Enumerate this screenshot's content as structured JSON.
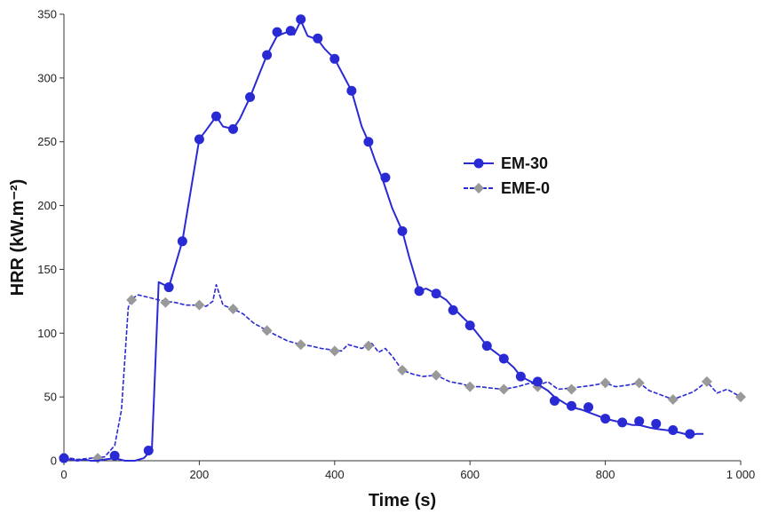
{
  "chart_data": {
    "type": "line",
    "title": "",
    "xlabel": "Time (s)",
    "ylabel": "HRR (kW.m⁻²)",
    "xlim": [
      0,
      1000
    ],
    "ylim": [
      0,
      350
    ],
    "xticks": [
      0,
      200,
      400,
      600,
      800,
      1000
    ],
    "xtick_labels": [
      "0",
      "200",
      "400",
      "600",
      "800",
      "1 000"
    ],
    "yticks": [
      0,
      50,
      100,
      150,
      200,
      250,
      300,
      350
    ],
    "ytick_labels": [
      "0",
      "50",
      "100",
      "150",
      "200",
      "250",
      "300",
      "350"
    ],
    "grid": false,
    "legend_position": "right-middle",
    "series": [
      {
        "name": "EM-30",
        "color": "#2a2ad4",
        "line_style": "solid",
        "marker": "circle",
        "x": [
          0,
          10,
          20,
          30,
          40,
          50,
          60,
          75,
          90,
          105,
          118,
          125,
          130,
          140,
          155,
          175,
          200,
          210,
          225,
          235,
          250,
          260,
          275,
          290,
          300,
          315,
          330,
          340,
          350,
          360,
          375,
          385,
          400,
          415,
          425,
          440,
          450,
          460,
          470,
          485,
          500,
          510,
          525,
          535,
          550,
          565,
          575,
          590,
          600,
          615,
          625,
          640,
          650,
          665,
          675,
          690,
          700,
          715,
          725,
          740,
          750,
          765,
          775,
          790,
          800,
          815,
          825,
          840,
          850,
          865,
          875,
          890,
          900,
          910,
          925,
          935,
          945
        ],
        "y": [
          2,
          1,
          0,
          1,
          0,
          0,
          1,
          2,
          0,
          0,
          2,
          6,
          10,
          140,
          136,
          172,
          252,
          259,
          270,
          262,
          260,
          268,
          285,
          305,
          318,
          333,
          336,
          334,
          345,
          333,
          330,
          323,
          315,
          300,
          290,
          262,
          250,
          235,
          222,
          198,
          180,
          160,
          133,
          135,
          131,
          126,
          120,
          112,
          107,
          97,
          90,
          84,
          80,
          73,
          66,
          62,
          60,
          55,
          50,
          45,
          42,
          40,
          38,
          35,
          33,
          31,
          30,
          28,
          28,
          26,
          25,
          24,
          23,
          22,
          20,
          21,
          21
        ],
        "marker_x": [
          0,
          75,
          125,
          155,
          175,
          200,
          225,
          250,
          275,
          300,
          315,
          335,
          350,
          375,
          400,
          425,
          450,
          475,
          500,
          525,
          550,
          575,
          600,
          625,
          650,
          675,
          700,
          725,
          750,
          775,
          800,
          825,
          850,
          875,
          900,
          925
        ],
        "marker_y": [
          2,
          4,
          8,
          136,
          172,
          252,
          270,
          260,
          285,
          318,
          336,
          337,
          346,
          331,
          315,
          290,
          250,
          222,
          180,
          133,
          131,
          118,
          106,
          90,
          80,
          66,
          62,
          47,
          43,
          42,
          33,
          30,
          31,
          29,
          24,
          21
        ]
      },
      {
        "name": "EME-0",
        "color": "#2a2ad4",
        "marker_color": "#999999",
        "line_style": "dashed",
        "marker": "diamond",
        "x": [
          0,
          20,
          40,
          60,
          75,
          85,
          95,
          100,
          110,
          125,
          140,
          150,
          165,
          180,
          200,
          210,
          220,
          225,
          235,
          250,
          265,
          280,
          300,
          315,
          330,
          350,
          365,
          380,
          395,
          410,
          420,
          440,
          455,
          465,
          475,
          485,
          500,
          515,
          530,
          550,
          570,
          590,
          600,
          615,
          630,
          650,
          670,
          690,
          700,
          715,
          730,
          750,
          765,
          780,
          800,
          815,
          830,
          850,
          865,
          880,
          900,
          915,
          930,
          950,
          965,
          980,
          1000
        ],
        "y": [
          3,
          1,
          2,
          3,
          12,
          40,
          120,
          127,
          130,
          128,
          126,
          125,
          124,
          122,
          122,
          121,
          125,
          138,
          122,
          119,
          115,
          108,
          102,
          98,
          94,
          91,
          90,
          88,
          87,
          86,
          91,
          88,
          92,
          85,
          88,
          82,
          71,
          68,
          66,
          67,
          62,
          60,
          58,
          58,
          57,
          56,
          58,
          61,
          59,
          62,
          56,
          57,
          58,
          59,
          61,
          58,
          59,
          61,
          55,
          52,
          48,
          51,
          54,
          62,
          53,
          56,
          50
        ],
        "marker_x": [
          0,
          50,
          100,
          150,
          200,
          250,
          300,
          350,
          400,
          450,
          500,
          550,
          600,
          650,
          700,
          750,
          800,
          850,
          900,
          950,
          1000
        ],
        "marker_y": [
          3,
          2,
          126,
          124,
          122,
          119,
          102,
          91,
          86,
          90,
          71,
          67,
          58,
          56,
          58,
          56,
          61,
          61,
          48,
          62,
          50
        ]
      }
    ]
  }
}
